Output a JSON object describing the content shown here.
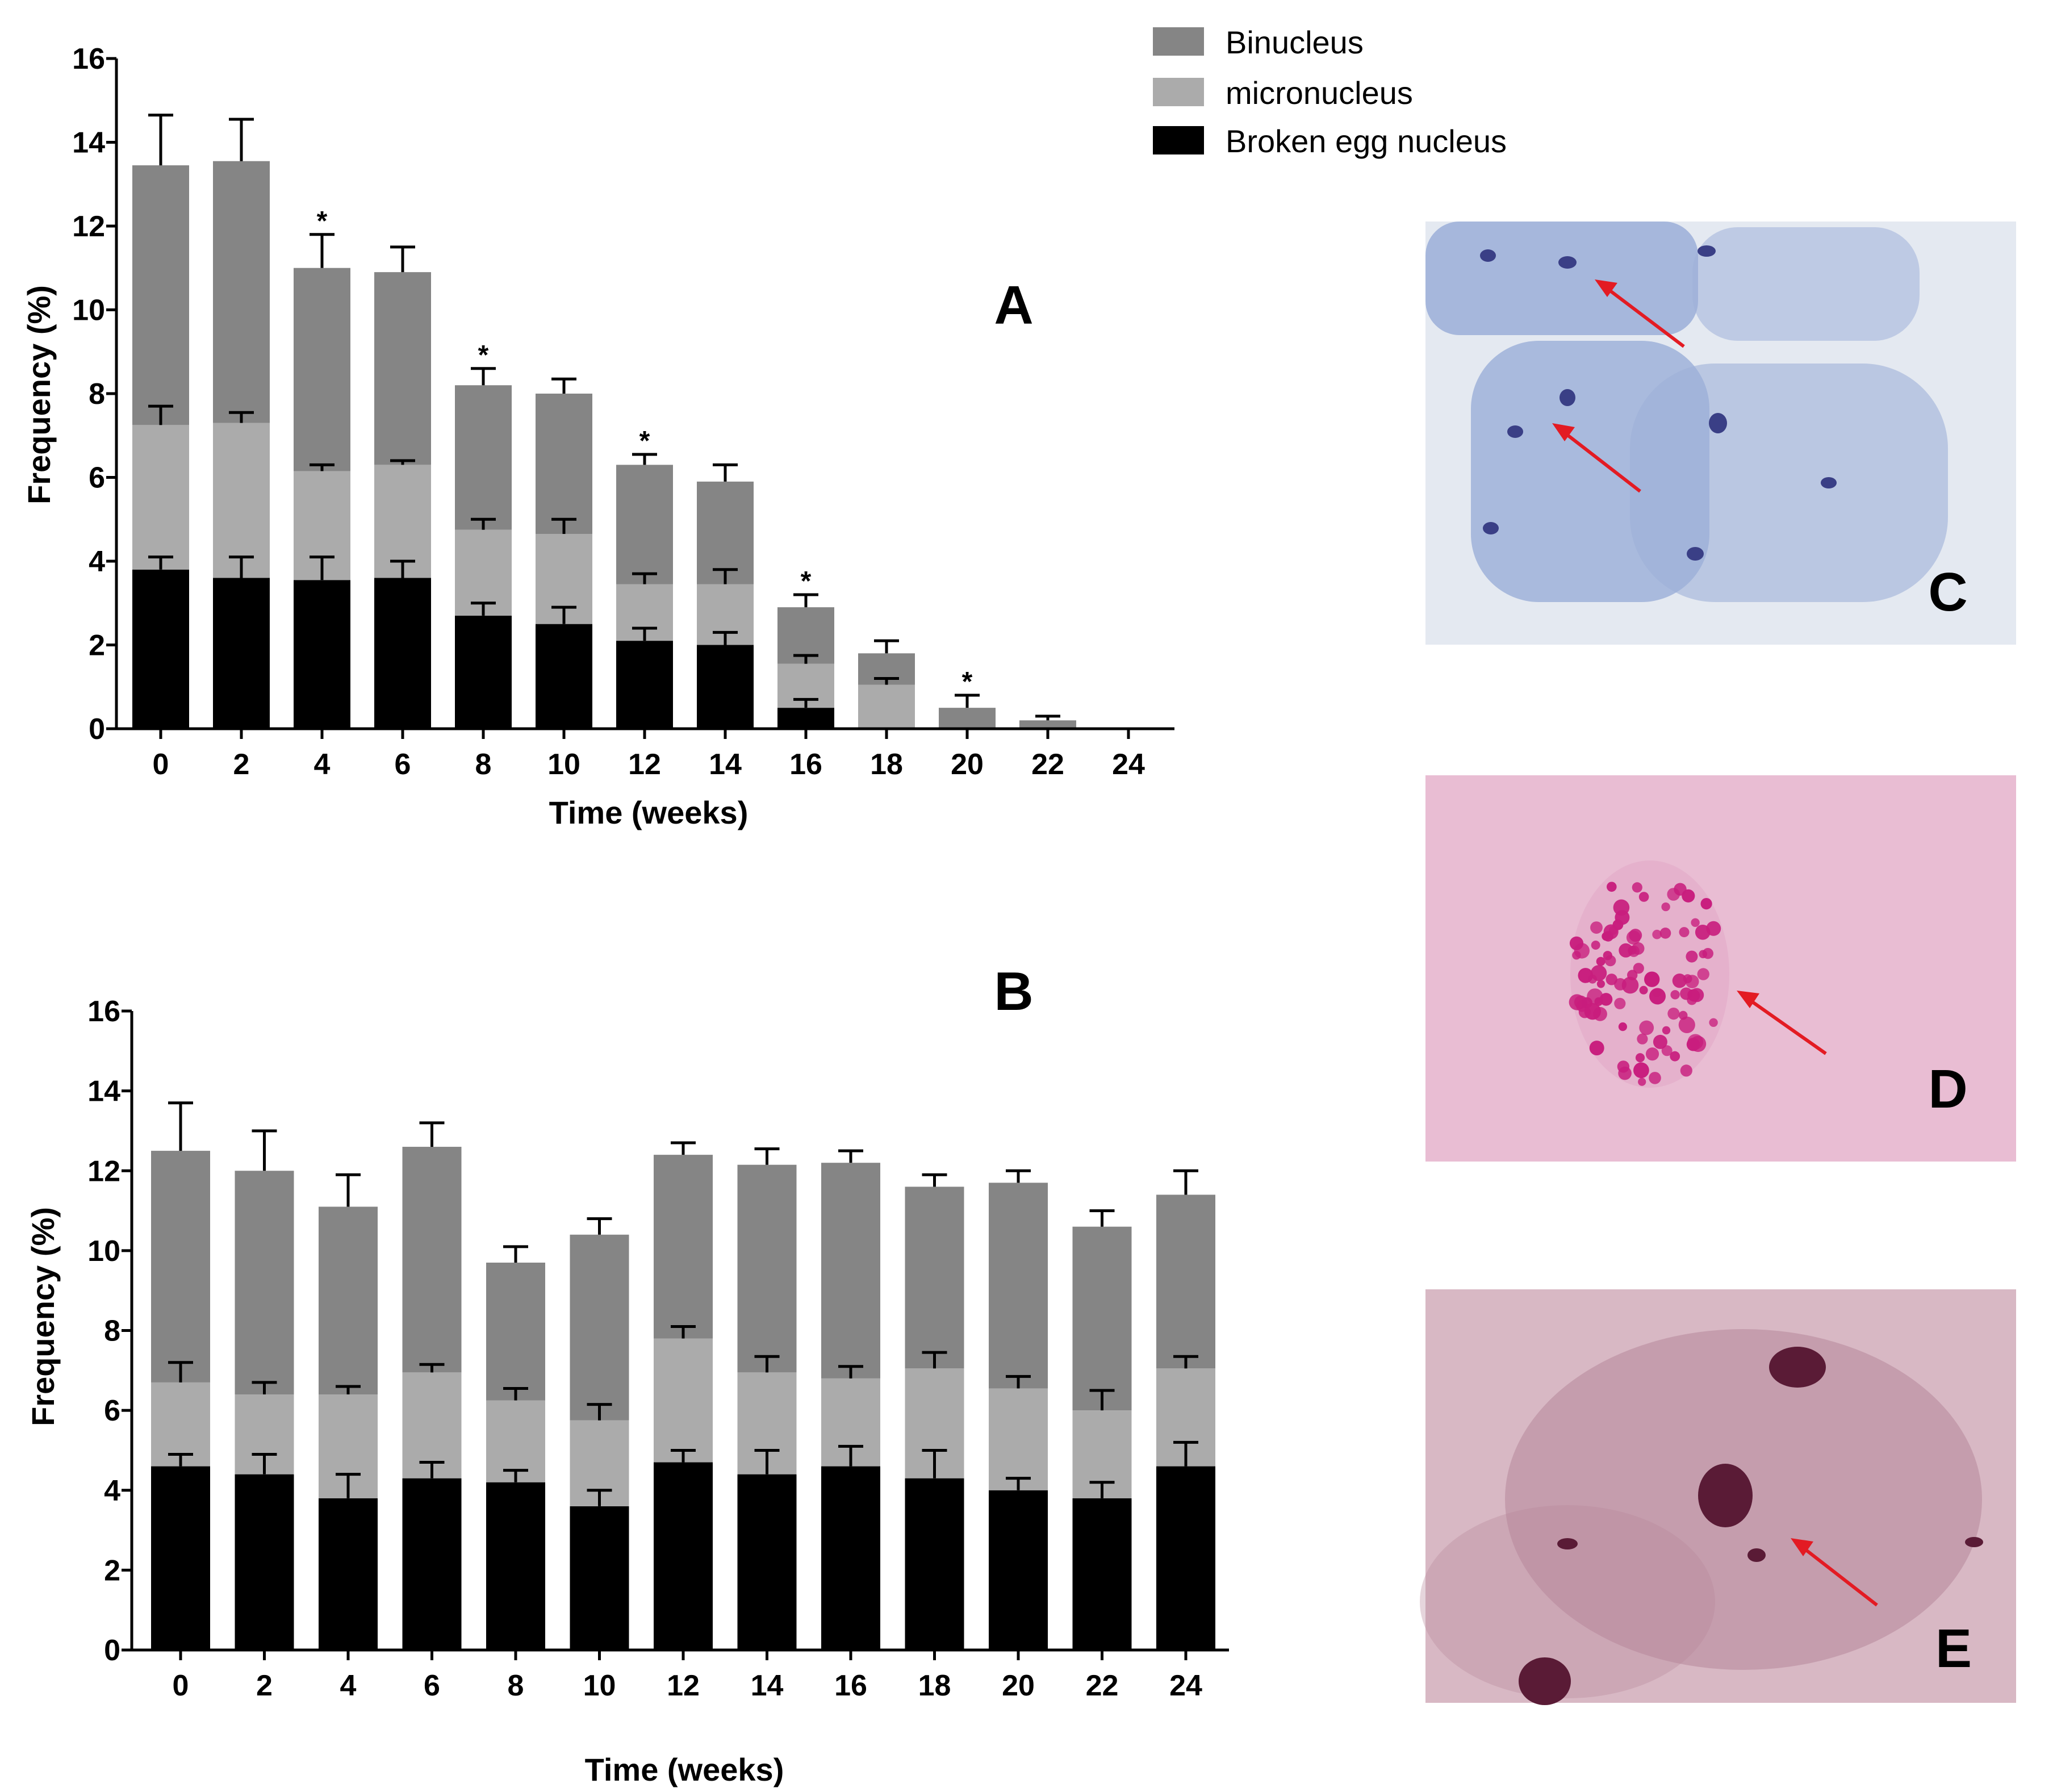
{
  "legend": {
    "items": [
      {
        "label": "Binucleus",
        "color": "#858585"
      },
      {
        "label": "micronucleus",
        "color": "#ababab"
      },
      {
        "label": "Broken egg nucleus",
        "color": "#000000"
      }
    ]
  },
  "chart_data": [
    {
      "type": "bar",
      "stacked": true,
      "panel_label": "A",
      "xlabel": "Time (weeks)",
      "ylabel": "Frequency (%)",
      "ylim": [
        0,
        16
      ],
      "yticks": [
        0,
        2,
        4,
        6,
        8,
        10,
        12,
        14,
        16
      ],
      "categories": [
        "0",
        "2",
        "4",
        "6",
        "8",
        "10",
        "12",
        "14",
        "16",
        "18",
        "20",
        "22",
        "24"
      ],
      "series": [
        {
          "name": "Broken egg nucleus",
          "values": [
            3.8,
            3.6,
            3.55,
            3.6,
            2.7,
            2.5,
            2.1,
            2.0,
            0.5,
            0.0,
            0.0,
            0.0,
            0.0
          ],
          "errors": [
            0.3,
            0.5,
            0.55,
            0.4,
            0.3,
            0.4,
            0.3,
            0.3,
            0.2,
            0,
            0,
            0,
            0
          ]
        },
        {
          "name": "micronucleus",
          "values": [
            3.45,
            3.7,
            2.6,
            2.7,
            2.05,
            2.15,
            1.35,
            1.45,
            1.05,
            1.05,
            0.0,
            0.0,
            0.0
          ],
          "errors": [
            0.45,
            0.25,
            0.15,
            0.1,
            0.25,
            0.35,
            0.25,
            0.35,
            0.2,
            0.15,
            0,
            0,
            0
          ]
        },
        {
          "name": "Binucleus",
          "values": [
            6.2,
            6.25,
            4.85,
            4.6,
            3.45,
            3.35,
            2.85,
            2.45,
            1.35,
            0.75,
            0.5,
            0.2,
            0.0
          ],
          "errors": [
            1.2,
            1.0,
            0.8,
            0.6,
            0.4,
            0.35,
            0.25,
            0.4,
            0.3,
            0.3,
            0.3,
            0.1,
            0
          ]
        }
      ],
      "significance_marks": [
        "",
        "",
        "*",
        "",
        "*",
        "",
        "*",
        "",
        "*",
        "",
        "*",
        "",
        ""
      ]
    },
    {
      "type": "bar",
      "stacked": true,
      "panel_label": "B",
      "xlabel": "Time (weeks)",
      "ylabel": "Frequency (%)",
      "ylim": [
        0,
        16
      ],
      "yticks": [
        0,
        2,
        4,
        6,
        8,
        10,
        12,
        14,
        16
      ],
      "categories": [
        "0",
        "2",
        "4",
        "6",
        "8",
        "10",
        "12",
        "14",
        "16",
        "18",
        "20",
        "22",
        "24"
      ],
      "series": [
        {
          "name": "Broken egg nucleus",
          "values": [
            4.6,
            4.4,
            3.8,
            4.3,
            4.2,
            3.6,
            4.7,
            4.4,
            4.6,
            4.3,
            4.0,
            3.8,
            4.6
          ],
          "errors": [
            0.3,
            0.5,
            0.6,
            0.4,
            0.3,
            0.4,
            0.3,
            0.6,
            0.5,
            0.7,
            0.3,
            0.4,
            0.6
          ]
        },
        {
          "name": "micronucleus",
          "values": [
            2.1,
            2.0,
            2.6,
            2.65,
            2.05,
            2.15,
            3.1,
            2.55,
            2.2,
            2.75,
            2.55,
            2.2,
            2.45
          ],
          "errors": [
            0.5,
            0.3,
            0.2,
            0.2,
            0.3,
            0.4,
            0.3,
            0.4,
            0.3,
            0.4,
            0.3,
            0.5,
            0.3
          ]
        },
        {
          "name": "Binucleus",
          "values": [
            5.8,
            5.6,
            4.7,
            5.65,
            3.45,
            4.65,
            4.6,
            5.2,
            5.4,
            4.55,
            5.15,
            4.6,
            4.35
          ],
          "errors": [
            1.2,
            1.0,
            0.8,
            0.6,
            0.4,
            0.4,
            0.3,
            0.4,
            0.3,
            0.3,
            0.3,
            0.4,
            0.6
          ]
        }
      ],
      "significance_marks": [
        "",
        "",
        "",
        "",
        "",
        "",
        "",
        "",
        "",
        "",
        "",
        "",
        ""
      ]
    }
  ],
  "photos": [
    {
      "label": "C",
      "bg": "#e4e9f1",
      "cell_color": "#9fb1d9",
      "nucleus_color": "#3a3f86",
      "arrow_color": "#e31b23"
    },
    {
      "label": "D",
      "bg": "#e9bdd3",
      "cell_color": "#e2a9c8",
      "nucleus_color": "#c81d7d",
      "arrow_color": "#e31b23"
    },
    {
      "label": "E",
      "bg": "#d8b8c4",
      "cell_color": "#b7869a",
      "nucleus_color": "#5a1b36",
      "arrow_color": "#e31b23"
    }
  ]
}
